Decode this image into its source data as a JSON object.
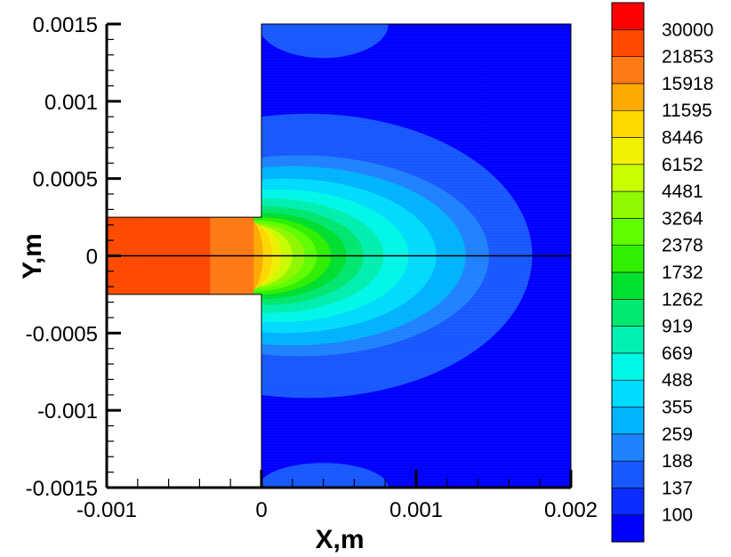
{
  "chart_data": {
    "type": "heatmap",
    "title": "",
    "xlabel": "X,m",
    "ylabel": "Y,m",
    "xlim": [
      -0.001,
      0.002
    ],
    "ylim": [
      -0.0015,
      0.0015
    ],
    "x_ticks": [
      {
        "value": -0.001,
        "label": "-0.001"
      },
      {
        "value": 0,
        "label": "0"
      },
      {
        "value": 0.001,
        "label": "0.001"
      },
      {
        "value": 0.002,
        "label": "0.002"
      }
    ],
    "y_ticks": [
      {
        "value": 0.0015,
        "label": "0.0015"
      },
      {
        "value": 0.001,
        "label": "0.001"
      },
      {
        "value": 0.0005,
        "label": "0.0005"
      },
      {
        "value": 0,
        "label": "0"
      },
      {
        "value": -0.0005,
        "label": "-0.0005"
      },
      {
        "value": -0.001,
        "label": "-0.001"
      },
      {
        "value": -0.0015,
        "label": "-0.0015"
      }
    ],
    "geometry": {
      "channel": {
        "x": [
          -0.001,
          0
        ],
        "y": [
          -0.00025,
          0.00025
        ]
      },
      "chamber": {
        "x": [
          0,
          0.002
        ],
        "y": [
          -0.0015,
          0.0015
        ]
      }
    },
    "legend": {
      "placement": "right",
      "levels": [
        100,
        137,
        188,
        259,
        355,
        488,
        669,
        919,
        1262,
        1732,
        2378,
        3264,
        4481,
        6152,
        8446,
        11595,
        15918,
        21853,
        30000
      ],
      "level_labels": [
        "100",
        "137",
        "188",
        "259",
        "355",
        "488",
        "669",
        "919",
        "1262",
        "1732",
        "2378",
        "3264",
        "4481",
        "6152",
        "8446",
        "11595",
        "15918",
        "21853",
        "30000"
      ],
      "colors": [
        "#0000ff",
        "#0c2cff",
        "#1858ff",
        "#1f82ff",
        "#00b4ff",
        "#00dcff",
        "#00f8e8",
        "#00f0b0",
        "#00e870",
        "#00e030",
        "#30f000",
        "#60ff00",
        "#90f800",
        "#c8ff00",
        "#f0f000",
        "#ffd800",
        "#ffaa00",
        "#ff7a14",
        "#ff4a00",
        "#ff0000"
      ]
    },
    "contours": [
      {
        "level": 137,
        "center": [
          0.0003,
          0
        ],
        "radii": [
          0.00145,
          0.00092
        ]
      },
      {
        "level": 188,
        "center": [
          0.00025,
          0
        ],
        "radii": [
          0.00122,
          0.00065
        ]
      },
      {
        "level": 259,
        "center": [
          0.0002,
          0
        ],
        "radii": [
          0.00112,
          0.00058
        ]
      },
      {
        "level": 355,
        "center": [
          0.00015,
          0
        ],
        "radii": [
          0.00098,
          0.0005
        ]
      },
      {
        "level": 488,
        "center": [
          0.0001,
          0
        ],
        "radii": [
          0.00085,
          0.00043
        ]
      },
      {
        "level": 669,
        "center": [
          5e-05,
          0
        ],
        "radii": [
          0.00074,
          0.00037
        ]
      },
      {
        "level": 919,
        "center": [
          2e-05,
          0
        ],
        "radii": [
          0.00064,
          0.00032
        ]
      },
      {
        "level": 1262,
        "center": [
          0,
          0
        ],
        "radii": [
          0.00055,
          0.00028
        ]
      },
      {
        "level": 1732,
        "center": [
          -2e-05,
          0
        ],
        "radii": [
          0.00047,
          0.00025
        ]
      },
      {
        "level": 2378,
        "center": [
          -4e-05,
          0
        ],
        "radii": [
          0.0004,
          0.00023
        ]
      },
      {
        "level": 3264,
        "center": [
          -5e-05,
          0
        ],
        "radii": [
          0.00033,
          0.00021
        ]
      },
      {
        "level": 4481,
        "center": [
          -6e-05,
          0
        ],
        "radii": [
          0.00026,
          0.0002
        ]
      },
      {
        "level": 6152,
        "center": [
          -7e-05,
          0
        ],
        "radii": [
          0.0002,
          0.0002
        ]
      },
      {
        "level": 8446,
        "center": [
          -8e-05,
          0
        ],
        "radii": [
          0.00015,
          0.00022
        ]
      },
      {
        "level": 11595,
        "center": [
          -0.0001,
          0
        ],
        "radii": [
          0.00011,
          0.00025
        ]
      },
      {
        "level": 15918,
        "center": [
          -0.00015,
          0
        ],
        "radii": [
          6e-05,
          0.00026
        ]
      }
    ],
    "channel_bands": [
      {
        "level": 21853,
        "x": [
          -0.001,
          -0.00033
        ]
      },
      {
        "level": 15918,
        "x": [
          -0.00033,
          -5e-05
        ]
      }
    ],
    "boundary_lobes": [
      {
        "level": 137,
        "center": [
          0.0004,
          0.0015
        ],
        "radii": [
          0.00042,
          0.00022
        ]
      },
      {
        "level": 137,
        "center": [
          0.0004,
          -0.0015
        ],
        "radii": [
          0.00042,
          0.00016
        ]
      }
    ],
    "grid": false
  }
}
